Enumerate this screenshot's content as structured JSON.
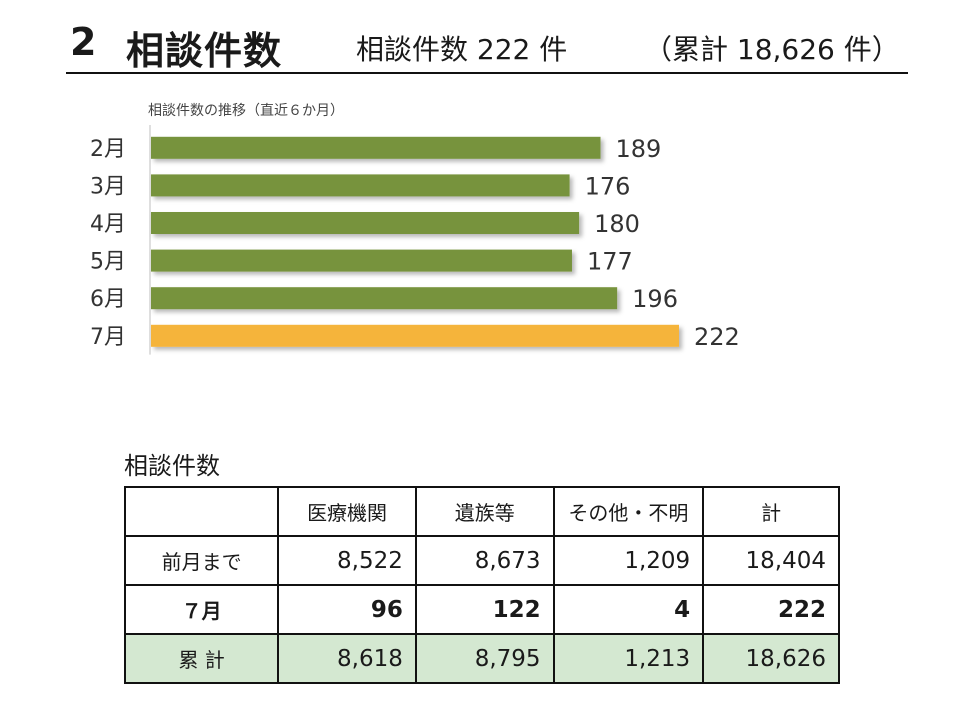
{
  "header": {
    "number": "2",
    "title": "相談件数",
    "subtitle": "相談件数 222 件",
    "total": "（累計 18,626 件）"
  },
  "chart_data": {
    "type": "bar",
    "orientation": "horizontal",
    "title": "相談件数の推移（直近６か月）",
    "categories": [
      "2月",
      "3月",
      "4月",
      "5月",
      "6月",
      "7月"
    ],
    "values": [
      189,
      176,
      180,
      177,
      196,
      222
    ],
    "highlight_index": 5,
    "colors": {
      "default": "#77933c",
      "highlight": "#f5b43a"
    },
    "xlim": [
      0,
      222
    ]
  },
  "table": {
    "caption": "相談件数",
    "columns": [
      "",
      "医療機関",
      "遺族等",
      "その他・不明",
      "計"
    ],
    "rows": [
      {
        "label": "前月まで",
        "values": [
          "8,522",
          "8,673",
          "1,209",
          "18,404"
        ]
      },
      {
        "label": "７月",
        "values": [
          "96",
          "122",
          "4",
          "222"
        ]
      },
      {
        "label": "累 計",
        "values": [
          "8,618",
          "8,795",
          "1,213",
          "18,626"
        ]
      }
    ]
  }
}
